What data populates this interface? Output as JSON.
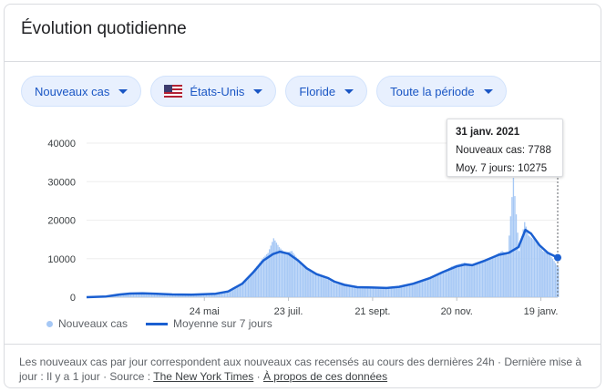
{
  "header": {
    "title": "Évolution quotidienne"
  },
  "filters": [
    {
      "label": "Nouveaux cas",
      "icon": "caret-down-icon"
    },
    {
      "label": "États-Unis",
      "icon": "us-flag-icon"
    },
    {
      "label": "Floride",
      "icon": "caret-down-icon"
    },
    {
      "label": "Toute la période",
      "icon": "caret-down-icon"
    }
  ],
  "tooltip": {
    "date": "31 janv. 2021",
    "cases_label": "Nouveaux cas: 7788",
    "avg_label": "Moy. 7 jours: 10275"
  },
  "legend": {
    "bars": "Nouveaux cas",
    "line": "Moyenne sur 7 jours"
  },
  "footer": {
    "text": "Les nouveaux cas par jour correspondent aux nouveaux cas recensés au cours des dernières 24h · Dernière mise à jour : Il y a 1 jour",
    "source_prefix": "Source :",
    "source_link": "The New York Times",
    "about_link": "À propos de ces données"
  },
  "colors": {
    "bar": "#a6c8f5",
    "line": "#1a5fd1",
    "accent": "#1a56c4"
  },
  "chart_data": {
    "type": "bar",
    "x_range": [
      "2020-03-01",
      "2021-01-31"
    ],
    "ylim": [
      0,
      40000
    ],
    "yticks": [
      0,
      10000,
      20000,
      30000,
      40000
    ],
    "xticks": [
      {
        "date": "2020-05-24",
        "label": "24 mai"
      },
      {
        "date": "2020-07-23",
        "label": "23 juil."
      },
      {
        "date": "2020-09-21",
        "label": "21 sept."
      },
      {
        "date": "2020-11-20",
        "label": "20 nov."
      },
      {
        "date": "2021-01-19",
        "label": "19 janv."
      }
    ],
    "series": [
      {
        "name": "Nouveaux cas",
        "kind": "bar",
        "points": [
          [
            "2020-03-01",
            0
          ],
          [
            "2020-03-15",
            200
          ],
          [
            "2020-03-25",
            700
          ],
          [
            "2020-04-01",
            900
          ],
          [
            "2020-04-15",
            1000
          ],
          [
            "2020-05-01",
            700
          ],
          [
            "2020-05-15",
            650
          ],
          [
            "2020-06-01",
            900
          ],
          [
            "2020-06-10",
            1500
          ],
          [
            "2020-06-20",
            3500
          ],
          [
            "2020-06-28",
            7000
          ],
          [
            "2020-07-04",
            10000
          ],
          [
            "2020-07-08",
            11500
          ],
          [
            "2020-07-12",
            15300
          ],
          [
            "2020-07-16",
            13000
          ],
          [
            "2020-07-20",
            11500
          ],
          [
            "2020-07-25",
            12000
          ],
          [
            "2020-07-30",
            9500
          ],
          [
            "2020-08-05",
            7500
          ],
          [
            "2020-08-10",
            6500
          ],
          [
            "2020-08-15",
            5500
          ],
          [
            "2020-08-20",
            4500
          ],
          [
            "2020-08-25",
            3500
          ],
          [
            "2020-09-01",
            3000
          ],
          [
            "2020-09-08",
            2500
          ],
          [
            "2020-09-15",
            2700
          ],
          [
            "2020-09-21",
            2500
          ],
          [
            "2020-09-28",
            2300
          ],
          [
            "2020-10-05",
            2500
          ],
          [
            "2020-10-12",
            3200
          ],
          [
            "2020-10-19",
            3700
          ],
          [
            "2020-10-26",
            4500
          ],
          [
            "2020-11-02",
            5000
          ],
          [
            "2020-11-09",
            6500
          ],
          [
            "2020-11-16",
            8000
          ],
          [
            "2020-11-20",
            8500
          ],
          [
            "2020-11-25",
            9000
          ],
          [
            "2020-12-01",
            8500
          ],
          [
            "2020-12-08",
            9500
          ],
          [
            "2020-12-15",
            10500
          ],
          [
            "2020-12-22",
            12000
          ],
          [
            "2020-12-26",
            11000
          ],
          [
            "2020-12-30",
            31000
          ],
          [
            "2021-01-03",
            12000
          ],
          [
            "2021-01-07",
            19500
          ],
          [
            "2021-01-10",
            16000
          ],
          [
            "2021-01-15",
            14500
          ],
          [
            "2021-01-20",
            12000
          ],
          [
            "2021-01-25",
            11000
          ],
          [
            "2021-01-31",
            7788
          ]
        ]
      },
      {
        "name": "Moyenne sur 7 jours",
        "kind": "line",
        "points": [
          [
            "2020-03-01",
            0
          ],
          [
            "2020-03-15",
            200
          ],
          [
            "2020-03-25",
            700
          ],
          [
            "2020-04-01",
            950
          ],
          [
            "2020-04-10",
            1000
          ],
          [
            "2020-04-20",
            900
          ],
          [
            "2020-05-01",
            700
          ],
          [
            "2020-05-15",
            650
          ],
          [
            "2020-06-01",
            900
          ],
          [
            "2020-06-10",
            1500
          ],
          [
            "2020-06-20",
            3500
          ],
          [
            "2020-06-28",
            6500
          ],
          [
            "2020-07-05",
            9500
          ],
          [
            "2020-07-12",
            11200
          ],
          [
            "2020-07-17",
            11800
          ],
          [
            "2020-07-23",
            11300
          ],
          [
            "2020-07-30",
            9500
          ],
          [
            "2020-08-05",
            7500
          ],
          [
            "2020-08-12",
            6000
          ],
          [
            "2020-08-20",
            5000
          ],
          [
            "2020-08-25",
            4000
          ],
          [
            "2020-09-01",
            3200
          ],
          [
            "2020-09-10",
            2600
          ],
          [
            "2020-09-21",
            2500
          ],
          [
            "2020-10-01",
            2400
          ],
          [
            "2020-10-10",
            2700
          ],
          [
            "2020-10-20",
            3500
          ],
          [
            "2020-11-01",
            5000
          ],
          [
            "2020-11-10",
            6500
          ],
          [
            "2020-11-20",
            8000
          ],
          [
            "2020-11-26",
            8500
          ],
          [
            "2020-12-01",
            8300
          ],
          [
            "2020-12-10",
            9500
          ],
          [
            "2020-12-20",
            11000
          ],
          [
            "2020-12-27",
            11500
          ],
          [
            "2021-01-03",
            13000
          ],
          [
            "2021-01-08",
            17500
          ],
          [
            "2021-01-12",
            16500
          ],
          [
            "2021-01-18",
            13500
          ],
          [
            "2021-01-24",
            11500
          ],
          [
            "2021-01-31",
            10275
          ]
        ]
      }
    ],
    "highlight": {
      "date": "2021-01-31",
      "cases": 7788,
      "avg": 10275
    }
  }
}
